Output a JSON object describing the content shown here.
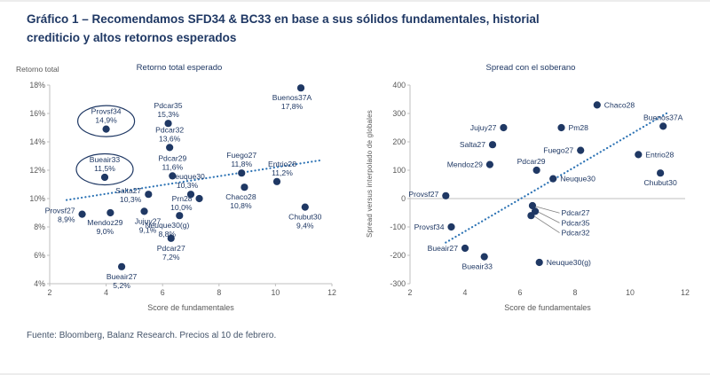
{
  "page": {
    "title_line1": "Gráfico 1 – Recomendamos SFD34 & BC33 en base a sus sólidos fundamentales, historial",
    "title_line2": "crediticio y altos retornos esperados",
    "footer": "Fuente: Bloomberg, Balanz Research. Precios al 10 de febrero."
  },
  "colors": {
    "title": "#1F3864",
    "point": "#1F3864",
    "label": "#1F3864",
    "tick": "#595959",
    "axis": "#BFBFBF",
    "trend": "#2E74B5",
    "leader": "#7F7F7F"
  },
  "chart_data": [
    {
      "type": "scatter",
      "title": "Retorno total esperado",
      "ylabel": "Retorno total",
      "xlabel": "Score de fundamentales",
      "xlim": [
        2,
        12
      ],
      "ylim": [
        4,
        18
      ],
      "xticks": [
        2,
        4,
        6,
        8,
        10,
        12
      ],
      "yticks": [
        18,
        16,
        14,
        12,
        10,
        8,
        6,
        4
      ],
      "ytick_suffix": "%",
      "grid": false,
      "x_axis_line": true,
      "trend": {
        "x1": 2.6,
        "y1": 9.9,
        "x2": 11.6,
        "y2": 12.7
      },
      "points": [
        {
          "name": "Provsf34",
          "value": "14,9%",
          "x": 4.0,
          "y": 14.9,
          "pos": "above",
          "circled": true
        },
        {
          "name": "Bueair33",
          "value": "11,5%",
          "x": 3.95,
          "y": 11.5,
          "pos": "above",
          "circled": true
        },
        {
          "name": "Pdcar35",
          "value": "15,3%",
          "x": 6.2,
          "y": 15.3,
          "pos": "above"
        },
        {
          "name": "Pdcar32",
          "value": "13,6%",
          "x": 6.25,
          "y": 13.6,
          "pos": "above"
        },
        {
          "name": "Pdcar29",
          "value": "11,6%",
          "x": 6.35,
          "y": 11.6,
          "pos": "above"
        },
        {
          "name": "Buenos37A",
          "value": "17,8%",
          "x": 10.9,
          "y": 17.8,
          "pos": "below",
          "dx": -10
        },
        {
          "name": "Fuego27",
          "value": "11,8%",
          "x": 8.8,
          "y": 11.8,
          "pos": "above"
        },
        {
          "name": "Entrio28",
          "value": "11,2%",
          "x": 10.05,
          "y": 11.2,
          "pos": "above",
          "dx": 6
        },
        {
          "name": "Salta27",
          "value": "10,3%",
          "x": 5.5,
          "y": 10.3,
          "pos": "left"
        },
        {
          "name": "Neuque30",
          "value": "10,3%",
          "x": 7.0,
          "y": 10.3,
          "pos": "above",
          "dx": -4
        },
        {
          "name": "Chaco28",
          "value": "10,8%",
          "x": 8.9,
          "y": 10.8,
          "pos": "below",
          "dx": -4
        },
        {
          "name": "Prn28",
          "value": "10,0%",
          "x": 7.3,
          "y": 10.0,
          "pos": "left",
          "dy": 4
        },
        {
          "name": "Chubut30",
          "value": "9,4%",
          "x": 11.05,
          "y": 9.4,
          "pos": "below"
        },
        {
          "name": "Provsf27",
          "value": "8,9%",
          "x": 3.15,
          "y": 8.9,
          "pos": "left"
        },
        {
          "name": "Mendoz29",
          "value": "9,0%",
          "x": 4.15,
          "y": 9.0,
          "pos": "below",
          "dx": -6
        },
        {
          "name": "Jujuy27",
          "value": "9,1%",
          "x": 5.35,
          "y": 9.1,
          "pos": "below",
          "dx": 4
        },
        {
          "name": "Neuque30(g)",
          "value": "8,8%",
          "x": 6.6,
          "y": 8.8,
          "pos": "below",
          "dx": -14
        },
        {
          "name": "Pdcar27",
          "value": "7,2%",
          "x": 6.3,
          "y": 7.2,
          "pos": "below"
        },
        {
          "name": "Bueair27",
          "value": "5,2%",
          "x": 4.55,
          "y": 5.2,
          "pos": "below"
        }
      ]
    },
    {
      "type": "scatter",
      "title": "Spread con el soberano",
      "ylabel": "Spread versus interpolado de globales",
      "xlabel": "Score de fundamentales",
      "xlim": [
        2,
        12
      ],
      "ylim": [
        -300,
        400
      ],
      "xticks": [
        2,
        4,
        6,
        8,
        10,
        12
      ],
      "yticks": [
        400,
        300,
        200,
        100,
        0,
        -100,
        -200,
        -300
      ],
      "grid": false,
      "x_axis_line": false,
      "zero_line": true,
      "margins": {
        "l": 50,
        "r": 12
      },
      "trend": {
        "x1": 3.3,
        "y1": -155,
        "x2": 11.4,
        "y2": 305
      },
      "points": [
        {
          "name": "Chaco28",
          "x": 8.8,
          "y": 330,
          "pos": "right"
        },
        {
          "name": "Jujuy27",
          "x": 5.4,
          "y": 250,
          "pos": "left"
        },
        {
          "name": "Pm28",
          "x": 7.5,
          "y": 250,
          "pos": "right"
        },
        {
          "name": "Buenos37A",
          "x": 11.2,
          "y": 255,
          "pos": "above"
        },
        {
          "name": "Salta27",
          "x": 5.0,
          "y": 190,
          "pos": "left"
        },
        {
          "name": "Fuego27",
          "x": 8.2,
          "y": 170,
          "pos": "left"
        },
        {
          "name": "Entrio28",
          "x": 10.3,
          "y": 155,
          "pos": "right"
        },
        {
          "name": "Mendoz29",
          "x": 4.9,
          "y": 120,
          "pos": "left"
        },
        {
          "name": "Pdcar29",
          "x": 6.6,
          "y": 100,
          "pos": "above",
          "dx": -6
        },
        {
          "name": "Neuque30",
          "x": 7.2,
          "y": 70,
          "pos": "right"
        },
        {
          "name": "Chubut30",
          "x": 11.1,
          "y": 90,
          "pos": "below"
        },
        {
          "name": "Provsf27",
          "x": 3.3,
          "y": 10,
          "pos": "left",
          "dy": -2
        },
        {
          "name": "Pdcar27",
          "x": 6.45,
          "y": -25,
          "leader": {
            "lx": 7.5,
            "ly": -60
          }
        },
        {
          "name": "Pdcar35",
          "x": 6.55,
          "y": -45,
          "leader": {
            "lx": 7.5,
            "ly": -95
          }
        },
        {
          "name": "Pdcar32",
          "x": 6.4,
          "y": -60,
          "leader": {
            "lx": 7.5,
            "ly": -130
          }
        },
        {
          "name": "Provsf34",
          "x": 3.5,
          "y": -100,
          "pos": "left"
        },
        {
          "name": "Bueair27",
          "x": 4.0,
          "y": -175,
          "pos": "left"
        },
        {
          "name": "Bueair33",
          "x": 4.7,
          "y": -205,
          "pos": "below",
          "dx": -8
        },
        {
          "name": "Neuque30(g)",
          "x": 6.7,
          "y": -225,
          "pos": "right"
        }
      ]
    }
  ]
}
